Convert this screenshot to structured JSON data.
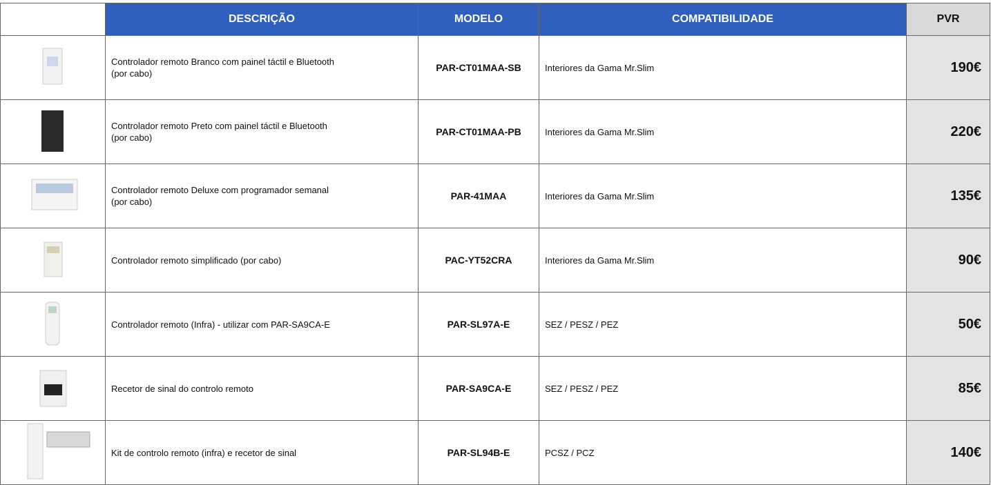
{
  "table": {
    "headers": [
      "DESCRIÇÃO",
      "MODELO",
      "COMPATIBILIDADE",
      "PVR"
    ],
    "rows": [
      [
        "Controlador remoto Branco com painel táctil e Bluetooth\n(por cabo)",
        "PAR-CT01MAA-SB",
        "Interiores da Gama Mr.Slim",
        "190€"
      ],
      [
        "Controlador remoto Preto com painel táctil e Bluetooth\n(por cabo)",
        "PAR-CT01MAA-PB",
        "Interiores da Gama Mr.Slim",
        "220€"
      ],
      [
        "Controlador remoto Deluxe com programador semanal\n(por cabo)",
        "PAR-41MAA",
        "Interiores da Gama Mr.Slim",
        "135€"
      ],
      [
        "Controlador remoto simplificado (por cabo)",
        "PAC-YT52CRA",
        "Interiores da Gama Mr.Slim",
        "90€"
      ],
      [
        "Controlador remoto (Infra) - utilizar com PAR-SA9CA-E",
        "PAR-SL97A-E",
        "SEZ / PESZ / PEZ",
        "50€"
      ],
      [
        "Recetor de sinal do controlo remoto",
        "PAR-SA9CA-E",
        "SEZ / PESZ / PEZ",
        "85€"
      ],
      [
        "Kit de controlo remoto (infra) e recetor de sinal",
        "PAR-SL94B-E",
        "PCSZ / PCZ",
        "140€"
      ]
    ]
  }
}
